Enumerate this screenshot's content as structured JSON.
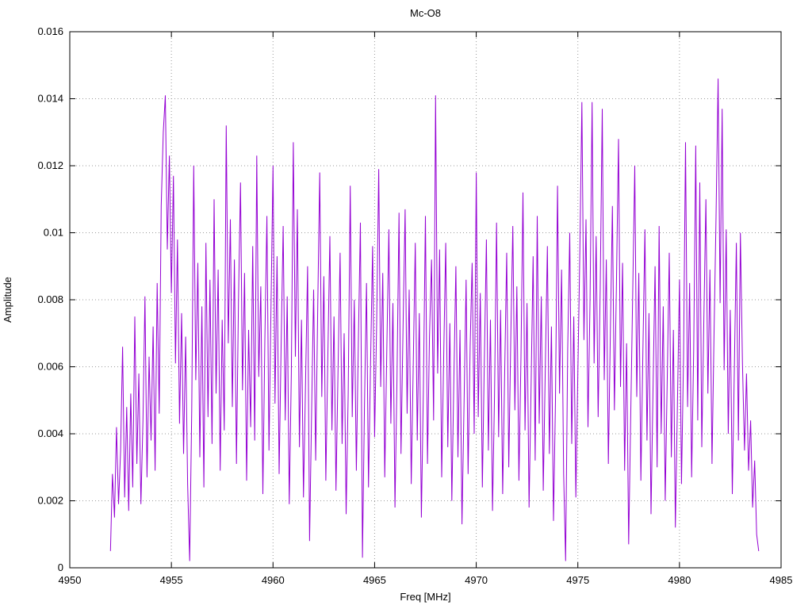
{
  "chart_data": {
    "type": "line",
    "title": "Mc-O8",
    "xlabel": "Freq [MHz]",
    "ylabel": "Amplitude",
    "xlim": [
      4950,
      4985
    ],
    "ylim": [
      0,
      0.016
    ],
    "xticks": [
      4950,
      4955,
      4960,
      4965,
      4970,
      4975,
      4980,
      4985
    ],
    "xtick_labels": [
      "4950",
      "4955",
      "4960",
      "4965",
      "4970",
      "4975",
      "4980",
      "4985"
    ],
    "yticks": [
      0,
      0.002,
      0.004,
      0.006,
      0.008,
      0.01,
      0.012,
      0.014,
      0.016
    ],
    "ytick_labels": [
      "0",
      "0.002",
      "0.004",
      "0.006",
      "0.008",
      "0.01",
      "0.012",
      "0.014",
      "0.016"
    ],
    "grid": true,
    "legend": "none",
    "line_color": "#9400d3",
    "background_color": "#ffffff",
    "x_start": 4952.0,
    "x_step": 0.1,
    "values": [
      0.0005,
      0.0028,
      0.0015,
      0.0042,
      0.0019,
      0.0035,
      0.0066,
      0.0021,
      0.0048,
      0.0017,
      0.0052,
      0.0024,
      0.0075,
      0.0031,
      0.0058,
      0.0019,
      0.0044,
      0.0081,
      0.0027,
      0.0063,
      0.0038,
      0.0072,
      0.0029,
      0.0085,
      0.0046,
      0.0108,
      0.013,
      0.0141,
      0.0095,
      0.0123,
      0.0082,
      0.0117,
      0.0061,
      0.0098,
      0.0043,
      0.0076,
      0.0034,
      0.0069,
      0.0025,
      0.0002,
      0.0047,
      0.012,
      0.0056,
      0.0091,
      0.0033,
      0.0078,
      0.0024,
      0.0097,
      0.0045,
      0.0086,
      0.0037,
      0.011,
      0.0052,
      0.0089,
      0.0029,
      0.0074,
      0.0041,
      0.0132,
      0.0067,
      0.0104,
      0.0048,
      0.0092,
      0.0031,
      0.0079,
      0.0115,
      0.0053,
      0.0088,
      0.0026,
      0.0071,
      0.0042,
      0.0096,
      0.0038,
      0.0123,
      0.0057,
      0.0084,
      0.0022,
      0.0068,
      0.0105,
      0.0035,
      0.0077,
      0.012,
      0.0049,
      0.0093,
      0.0028,
      0.0066,
      0.0102,
      0.0044,
      0.0081,
      0.0019,
      0.0058,
      0.0127,
      0.0063,
      0.0107,
      0.0036,
      0.0074,
      0.0021,
      0.0055,
      0.009,
      0.0008,
      0.0047,
      0.0083,
      0.0032,
      0.0078,
      0.0118,
      0.0051,
      0.0087,
      0.0026,
      0.0064,
      0.0099,
      0.0041,
      0.0075,
      0.0023,
      0.0059,
      0.0094,
      0.0037,
      0.007,
      0.0016,
      0.0052,
      0.0114,
      0.0045,
      0.008,
      0.0029,
      0.0067,
      0.0103,
      0.0003,
      0.0048,
      0.0085,
      0.0024,
      0.0061,
      0.0096,
      0.0039,
      0.0073,
      0.0119,
      0.0054,
      0.0088,
      0.0027,
      0.0065,
      0.0101,
      0.0043,
      0.0079,
      0.0018,
      0.0056,
      0.0106,
      0.0034,
      0.0072,
      0.0107,
      0.0046,
      0.0083,
      0.0025,
      0.006,
      0.0097,
      0.0038,
      0.0076,
      0.0015,
      0.0053,
      0.0105,
      0.0031,
      0.0069,
      0.0092,
      0.0044,
      0.0141,
      0.0058,
      0.0095,
      0.0027,
      0.0064,
      0.0097,
      0.0036,
      0.0073,
      0.002,
      0.0057,
      0.009,
      0.0033,
      0.0071,
      0.0013,
      0.0049,
      0.0086,
      0.0028,
      0.0066,
      0.0091,
      0.004,
      0.0118,
      0.0045,
      0.0082,
      0.0024,
      0.0062,
      0.0098,
      0.0035,
      0.0074,
      0.0017,
      0.0051,
      0.0103,
      0.0039,
      0.0077,
      0.0022,
      0.0059,
      0.0094,
      0.003,
      0.0068,
      0.0102,
      0.0047,
      0.0084,
      0.0026,
      0.0063,
      0.0112,
      0.0041,
      0.0079,
      0.0018,
      0.0055,
      0.0093,
      0.0032,
      0.0105,
      0.0043,
      0.0081,
      0.0023,
      0.006,
      0.0096,
      0.0034,
      0.0072,
      0.0014,
      0.005,
      0.0114,
      0.0052,
      0.0089,
      0.0028,
      0.0002,
      0.0065,
      0.01,
      0.0037,
      0.0075,
      0.0021,
      0.0058,
      0.0095,
      0.0139,
      0.0068,
      0.0104,
      0.0042,
      0.008,
      0.0139,
      0.0061,
      0.0099,
      0.0045,
      0.0083,
      0.0137,
      0.0056,
      0.0092,
      0.0031,
      0.007,
      0.0108,
      0.0047,
      0.0085,
      0.0128,
      0.0054,
      0.0091,
      0.0029,
      0.0067,
      0.0007,
      0.0044,
      0.0082,
      0.012,
      0.0051,
      0.0088,
      0.0026,
      0.0064,
      0.0101,
      0.0038,
      0.0076,
      0.0016,
      0.0053,
      0.009,
      0.003,
      0.0102,
      0.004,
      0.0078,
      0.002,
      0.0057,
      0.0094,
      0.0033,
      0.0071,
      0.0012,
      0.0049,
      0.0086,
      0.0025,
      0.0063,
      0.0127,
      0.0048,
      0.0085,
      0.0027,
      0.0065,
      0.0126,
      0.0044,
      0.0115,
      0.0036,
      0.0074,
      0.011,
      0.0052,
      0.0089,
      0.0031,
      0.0069,
      0.0105,
      0.0146,
      0.0079,
      0.0137,
      0.0059,
      0.0101,
      0.004,
      0.0077,
      0.0022,
      0.006,
      0.0097,
      0.0038,
      0.01,
      0.0061,
      0.0035,
      0.0058,
      0.0029,
      0.0044,
      0.0018,
      0.0032,
      0.001,
      0.0005
    ]
  }
}
